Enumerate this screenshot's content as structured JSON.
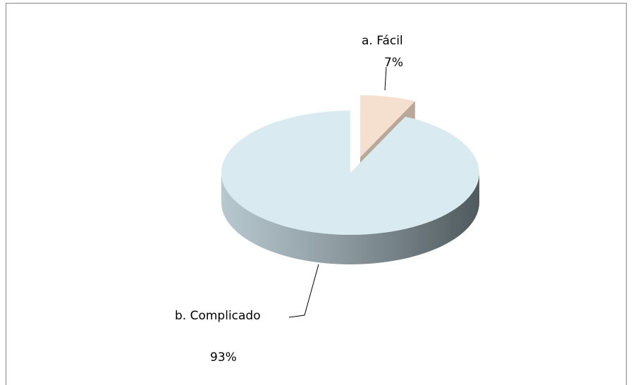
{
  "chart_data": {
    "type": "pie",
    "categories": [
      "a. Fácil",
      "b. Complicado"
    ],
    "values": [
      7,
      93
    ],
    "value_labels": [
      "7%",
      "93%"
    ],
    "colors": [
      "#f5e0d0",
      "#d9eaf1"
    ]
  }
}
